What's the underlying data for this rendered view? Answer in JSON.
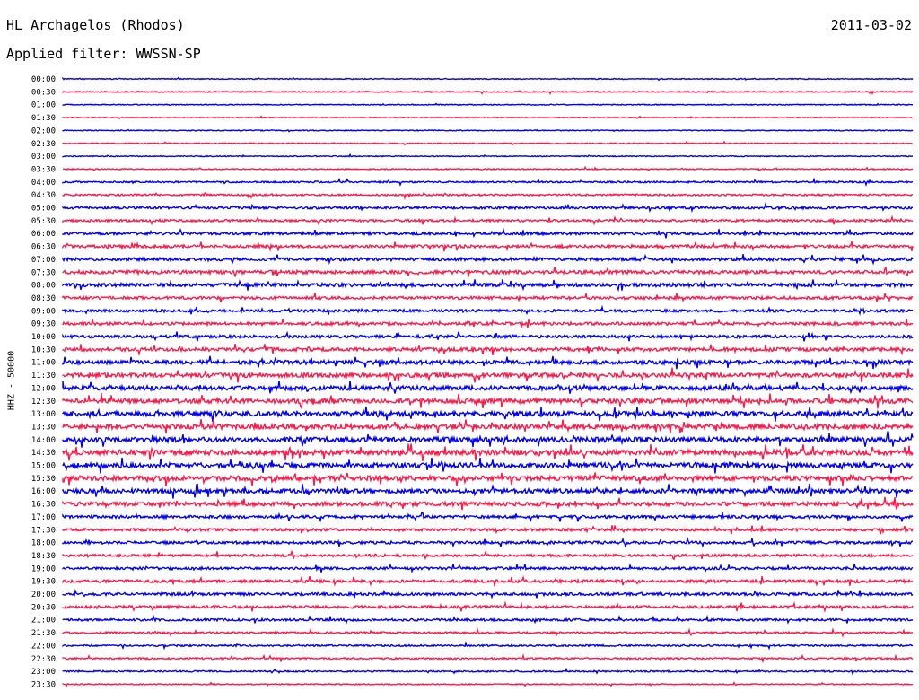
{
  "header": {
    "station": "HL Archagelos (Rhodos)",
    "filter": "Applied filter: WWSSN-SP",
    "date": "2011-03-02"
  },
  "side_label": "HHZ - 50000",
  "colors": {
    "even_trace": "#0000ff",
    "odd_trace": "#ff1a4a"
  },
  "chart_data": {
    "type": "line",
    "subtype": "helicorder",
    "title": "HL Archagelos (Rhodos)",
    "subtitle": "Applied filter: WWSSN-SP",
    "ylabel": "HHZ - 50000",
    "date": "2011-03-02",
    "row_labels": [
      "00:00",
      "00:30",
      "01:00",
      "01:30",
      "02:00",
      "02:30",
      "03:00",
      "03:30",
      "04:00",
      "04:30",
      "05:00",
      "05:30",
      "06:00",
      "06:30",
      "07:00",
      "07:30",
      "08:00",
      "08:30",
      "09:00",
      "09:30",
      "10:00",
      "10:30",
      "11:00",
      "11:30",
      "12:00",
      "12:30",
      "13:00",
      "13:30",
      "14:00",
      "14:30",
      "15:00",
      "15:30",
      "16:00",
      "16:30",
      "17:00",
      "17:30",
      "18:00",
      "18:30",
      "19:00",
      "19:30",
      "20:00",
      "20:30",
      "21:00",
      "21:30",
      "22:00",
      "22:30",
      "23:00",
      "23:30"
    ],
    "row_noise": [
      0.5,
      0.6,
      0.5,
      0.4,
      0.5,
      0.5,
      0.5,
      0.6,
      0.9,
      1.0,
      1.3,
      1.3,
      1.5,
      1.6,
      1.7,
      1.9,
      1.9,
      1.6,
      1.5,
      1.6,
      1.6,
      1.9,
      2.2,
      2.4,
      2.4,
      2.5,
      2.6,
      2.6,
      2.6,
      2.8,
      2.6,
      2.6,
      2.4,
      2.2,
      1.6,
      1.5,
      1.5,
      1.4,
      1.4,
      1.6,
      1.5,
      1.5,
      1.3,
      1.0,
      0.9,
      0.9,
      0.8,
      0.6
    ],
    "series_colors": [
      "even",
      "odd"
    ],
    "grid": false,
    "legend": "none"
  }
}
